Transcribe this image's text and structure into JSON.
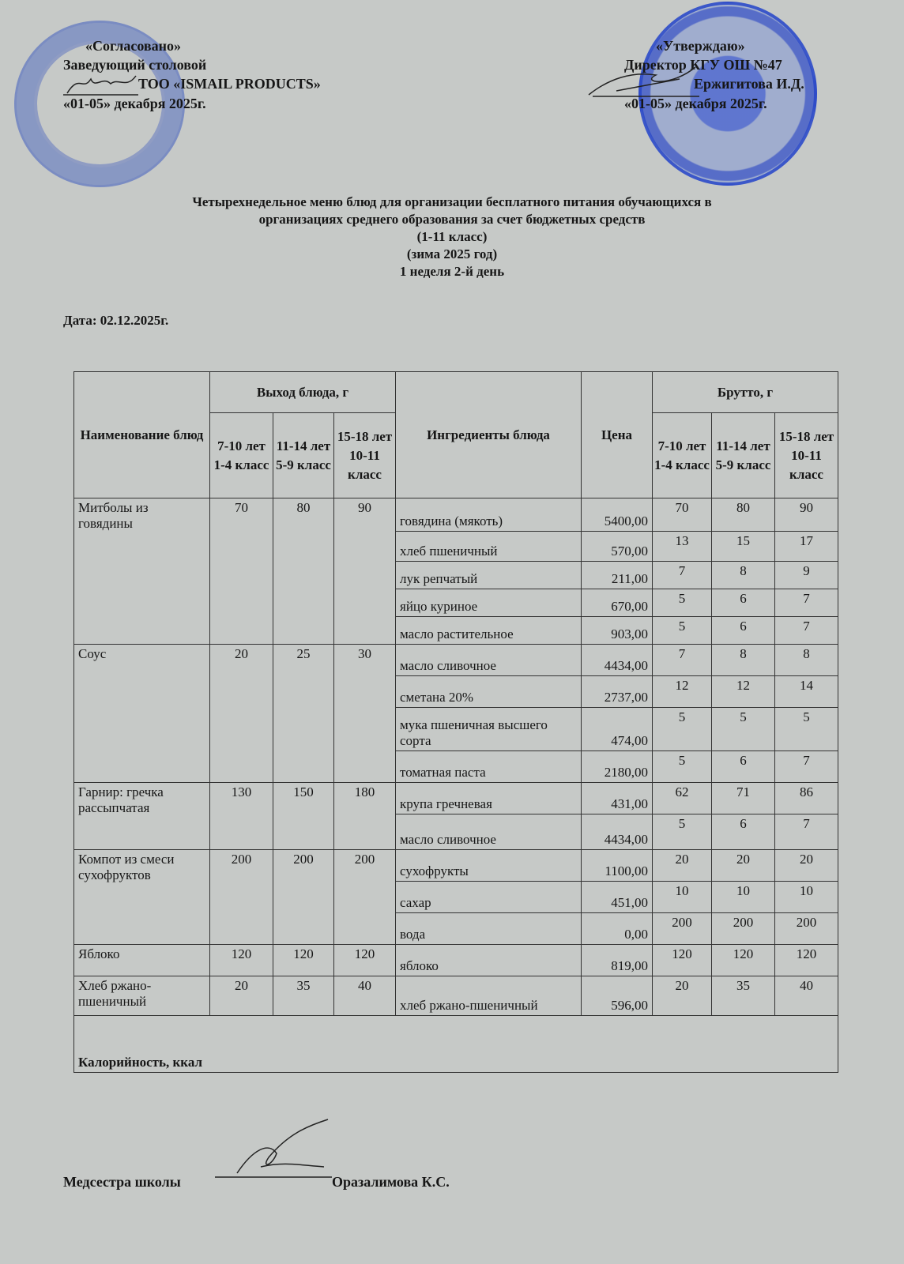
{
  "approval_left": {
    "title": "«Согласовано»",
    "position": "Заведующий столовой",
    "org": "ТОО «ISMAIL PRODUCTS»",
    "date": "«01-05» декабря 2025г."
  },
  "approval_right": {
    "title": "«Утверждаю»",
    "position": "Директор КГУ ОШ №47",
    "name": "Ержигитова И.Д.",
    "date": "«01-05» декабря 2025г."
  },
  "title_lines": [
    "Четырехнедельное меню блюд для организации бесплатного питания обучающихся в",
    "организациях среднего образования за счет бюджетных средств",
    "(1-11 класс)",
    "(зима 2025 год)",
    "1 неделя 2-й день"
  ],
  "date_label": "Дата: 02.12.2025г.",
  "table": {
    "headers": {
      "name": "Наименование блюд",
      "yield": "Выход блюда, г",
      "ingredients": "Ингредиенты блюда",
      "price": "Цена",
      "gross": "Брутто, г",
      "groups": [
        "7-10 лет 1-4 класс",
        "11-14 лет 5-9 класс",
        "15-18 лет 10-11 класс"
      ]
    },
    "dishes": [
      {
        "name": "Митболы из говядины",
        "yield": [
          "70",
          "80",
          "90"
        ],
        "ingredients": [
          {
            "name": "говядина (мякоть)",
            "price": "5400,00",
            "gross": [
              "70",
              "80",
              "90"
            ]
          },
          {
            "name": "хлеб пшеничный",
            "price": "570,00",
            "gross": [
              "13",
              "15",
              "17"
            ]
          },
          {
            "name": "лук репчатый",
            "price": "211,00",
            "gross": [
              "7",
              "8",
              "9"
            ]
          },
          {
            "name": "яйцо куриное",
            "price": "670,00",
            "gross": [
              "5",
              "6",
              "7"
            ]
          },
          {
            "name": "масло растительное",
            "price": "903,00",
            "gross": [
              "5",
              "6",
              "7"
            ]
          }
        ]
      },
      {
        "name": "Соус",
        "yield": [
          "20",
          "25",
          "30"
        ],
        "ingredients": [
          {
            "name": "масло сливочное",
            "price": "4434,00",
            "gross": [
              "7",
              "8",
              "8"
            ]
          },
          {
            "name": "сметана 20%",
            "price": "2737,00",
            "gross": [
              "12",
              "12",
              "14"
            ]
          },
          {
            "name": "мука пшеничная высшего сорта",
            "price": "474,00",
            "gross": [
              "5",
              "5",
              "5"
            ]
          },
          {
            "name": "томатная паста",
            "price": "2180,00",
            "gross": [
              "5",
              "6",
              "7"
            ]
          }
        ]
      },
      {
        "name": "Гарнир: гречка рассыпчатая",
        "yield": [
          "130",
          "150",
          "180"
        ],
        "ingredients": [
          {
            "name": "крупа гречневая",
            "price": "431,00",
            "gross": [
              "62",
              "71",
              "86"
            ]
          },
          {
            "name": "масло сливочное",
            "price": "4434,00",
            "gross": [
              "5",
              "6",
              "7"
            ]
          }
        ]
      },
      {
        "name": "Компот из смеси сухофруктов",
        "yield": [
          "200",
          "200",
          "200"
        ],
        "ingredients": [
          {
            "name": "сухофрукты",
            "price": "1100,00",
            "gross": [
              "20",
              "20",
              "20"
            ]
          },
          {
            "name": "сахар",
            "price": "451,00",
            "gross": [
              "10",
              "10",
              "10"
            ]
          },
          {
            "name": "вода",
            "price": "0,00",
            "gross": [
              "200",
              "200",
              "200"
            ]
          }
        ]
      },
      {
        "name": "Яблоко",
        "yield": [
          "120",
          "120",
          "120"
        ],
        "ingredients": [
          {
            "name": "яблоко",
            "price": "819,00",
            "gross": [
              "120",
              "120",
              "120"
            ]
          }
        ]
      },
      {
        "name": "Хлеб ржано-пшеничный",
        "yield": [
          "20",
          "35",
          "40"
        ],
        "ingredients": [
          {
            "name": "хлеб ржано-пшеничный",
            "price": "596,00",
            "gross": [
              "20",
              "35",
              "40"
            ]
          }
        ]
      }
    ],
    "calories_label": "Калорийность, ккал"
  },
  "footer": {
    "label": "Медсестра школы",
    "name": "Оразалимова К.С."
  },
  "colors": {
    "stamp": "#2f4fc0",
    "paper": "#c6c9c7"
  }
}
